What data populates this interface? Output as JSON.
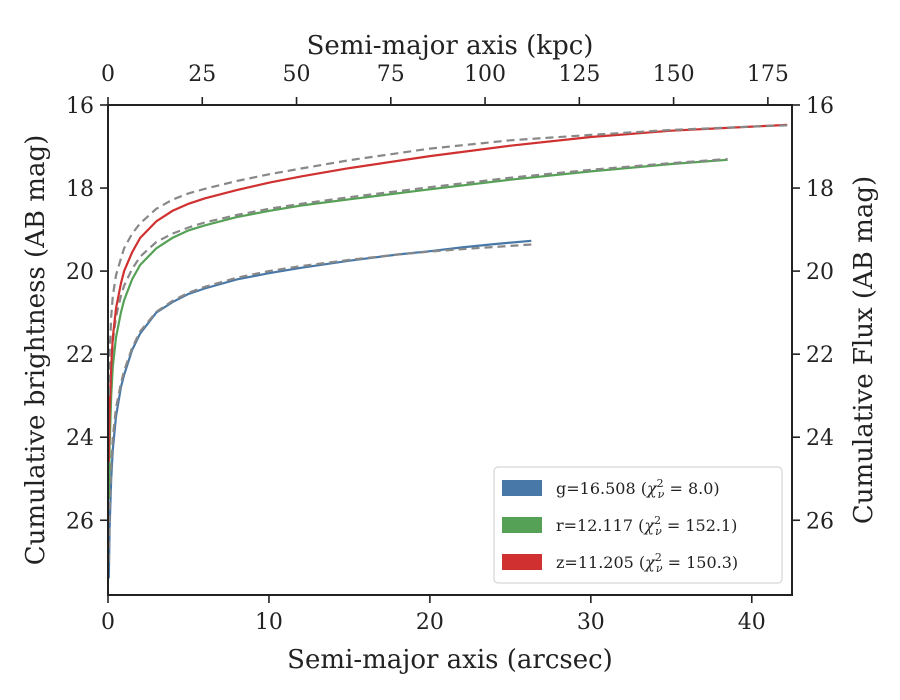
{
  "chart_data": {
    "type": "line",
    "title": "",
    "xlabel": "Semi-major axis (arcsec)",
    "ylabel": "Cumulative brightness (AB mag)",
    "top_xlabel": "Semi-major axis (kpc)",
    "right_ylabel": "Cumulative Flux (AB mag)",
    "xlim": [
      0,
      42.5
    ],
    "ylim": [
      27.8,
      16
    ],
    "y_inverted": true,
    "top_xlim": [
      0,
      181.4
    ],
    "x_ticks": [
      0,
      10,
      20,
      30,
      40
    ],
    "y_ticks": [
      16,
      18,
      20,
      22,
      24,
      26
    ],
    "top_x_ticks": [
      0,
      25,
      50,
      75,
      100,
      125,
      150,
      175
    ],
    "grid": false,
    "legend_position": "lower-right",
    "colors": {
      "g": "#4878a8",
      "r": "#55a155",
      "z": "#d03030",
      "model": "#888888"
    },
    "series": [
      {
        "name": "g=16.508 (χ²ν = 8.0)",
        "label_prefix": "g=16.508 (",
        "label_chi": "χ",
        "label_sup": "2",
        "label_sub": "ν",
        "label_suffix": " = 8.0)",
        "color": "#4878a8",
        "x": [
          0.05,
          0.1,
          0.2,
          0.3,
          0.5,
          0.8,
          1.0,
          1.5,
          2.0,
          3.0,
          4.0,
          5.0,
          6.0,
          8.0,
          10.0,
          12.0,
          15.0,
          18.0,
          20.0,
          22.0,
          24.0,
          26.3
        ],
        "y": [
          27.4,
          26.2,
          25.0,
          24.3,
          23.5,
          22.8,
          22.5,
          21.9,
          21.5,
          21.0,
          20.75,
          20.55,
          20.42,
          20.2,
          20.05,
          19.92,
          19.75,
          19.6,
          19.52,
          19.43,
          19.35,
          19.27
        ],
        "model_y": [
          27.0,
          25.8,
          24.7,
          24.0,
          23.3,
          22.7,
          22.4,
          21.85,
          21.45,
          20.98,
          20.72,
          20.52,
          20.38,
          20.16,
          20.0,
          19.88,
          19.73,
          19.6,
          19.53,
          19.47,
          19.42,
          19.36
        ]
      },
      {
        "name": "r=12.117 (χ²ν = 152.1)",
        "label_prefix": "r=12.117 (",
        "label_chi": "χ",
        "label_sup": "2",
        "label_sub": "ν",
        "label_suffix": " = 152.1)",
        "color": "#55a155",
        "x": [
          0.05,
          0.1,
          0.2,
          0.3,
          0.5,
          0.8,
          1.0,
          1.5,
          2.0,
          3.0,
          4.0,
          5.0,
          6.0,
          8.0,
          10.0,
          12.0,
          15.0,
          20.0,
          25.0,
          30.0,
          35.0,
          38.5
        ],
        "y": [
          25.5,
          24.2,
          23.0,
          22.3,
          21.6,
          21.0,
          20.7,
          20.2,
          19.85,
          19.45,
          19.2,
          19.02,
          18.9,
          18.7,
          18.55,
          18.42,
          18.27,
          18.03,
          17.8,
          17.6,
          17.42,
          17.32
        ],
        "model_y": [
          24.5,
          23.3,
          22.3,
          21.7,
          21.1,
          20.6,
          20.35,
          19.95,
          19.65,
          19.3,
          19.1,
          18.95,
          18.83,
          18.65,
          18.5,
          18.38,
          18.22,
          17.98,
          17.75,
          17.56,
          17.4,
          17.3
        ]
      },
      {
        "name": "z=11.205 (χ²ν = 150.3)",
        "label_prefix": "z=11.205 (",
        "label_chi": "χ",
        "label_sup": "2",
        "label_sub": "ν",
        "label_suffix": " = 150.3)",
        "color": "#d03030",
        "x": [
          0.05,
          0.1,
          0.2,
          0.3,
          0.5,
          0.8,
          1.0,
          1.5,
          2.0,
          3.0,
          4.0,
          5.0,
          6.0,
          8.0,
          10.0,
          12.0,
          15.0,
          20.0,
          25.0,
          30.0,
          35.0,
          40.0,
          42.2
        ],
        "y": [
          24.6,
          23.4,
          22.3,
          21.6,
          20.9,
          20.3,
          20.0,
          19.55,
          19.2,
          18.8,
          18.55,
          18.38,
          18.25,
          18.05,
          17.87,
          17.72,
          17.52,
          17.23,
          16.98,
          16.77,
          16.62,
          16.52,
          16.48
        ],
        "model_y": [
          23.0,
          22.0,
          21.1,
          20.6,
          20.1,
          19.7,
          19.45,
          19.1,
          18.85,
          18.5,
          18.28,
          18.13,
          18.02,
          17.83,
          17.67,
          17.53,
          17.33,
          17.05,
          16.85,
          16.72,
          16.6,
          16.52,
          16.49
        ]
      }
    ]
  }
}
